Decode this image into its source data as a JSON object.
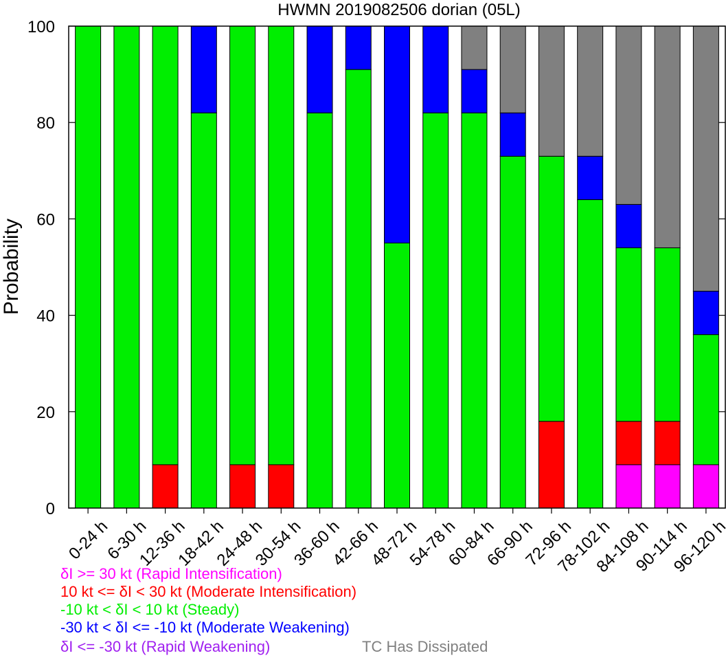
{
  "chart_data": {
    "type": "bar",
    "stacked": true,
    "title": "HWMN 2019082506 dorian (05L)",
    "xlabel": "",
    "ylabel": "Probability",
    "ylim": [
      0,
      100
    ],
    "yticks": [
      0,
      20,
      40,
      60,
      80,
      100
    ],
    "grid": false,
    "categories": [
      "0-24 h",
      "6-30 h",
      "12-36 h",
      "18-42 h",
      "24-48 h",
      "30-54 h",
      "36-60 h",
      "42-66 h",
      "48-72 h",
      "54-78 h",
      "60-84 h",
      "66-90 h",
      "72-96 h",
      "78-102 h",
      "84-108 h",
      "90-114 h",
      "96-120 h"
    ],
    "series": [
      {
        "name": "Rapid Weakening",
        "color": "#a020f0",
        "values": [
          0,
          0,
          0,
          0,
          0,
          0,
          0,
          0,
          0,
          0,
          0,
          0,
          0,
          0,
          0,
          0,
          0
        ]
      },
      {
        "name": "Rapid Intensification",
        "color": "#ff00ff",
        "values": [
          0,
          0,
          0,
          0,
          0,
          0,
          0,
          0,
          0,
          0,
          0,
          0,
          0,
          0,
          9,
          9,
          9
        ]
      },
      {
        "name": "Moderate Intensification",
        "color": "#ff0000",
        "values": [
          0,
          0,
          9,
          0,
          9,
          9,
          0,
          0,
          0,
          0,
          0,
          0,
          18,
          0,
          9,
          9,
          0
        ]
      },
      {
        "name": "Steady",
        "color": "#00ee00",
        "values": [
          100,
          100,
          91,
          82,
          91,
          91,
          82,
          91,
          55,
          82,
          82,
          73,
          55,
          64,
          36,
          36,
          27
        ]
      },
      {
        "name": "Moderate Weakening",
        "color": "#0000ff",
        "values": [
          0,
          0,
          0,
          18,
          0,
          0,
          18,
          9,
          45,
          18,
          9,
          9,
          0,
          9,
          9,
          0,
          9
        ]
      },
      {
        "name": "TC Has Dissipated",
        "color": "#808080",
        "values": [
          0,
          0,
          0,
          0,
          0,
          0,
          0,
          0,
          0,
          0,
          9,
          18,
          27,
          27,
          37,
          46,
          55
        ]
      }
    ],
    "legend": {
      "placement": "bottom-left",
      "entries": [
        {
          "prefix": "δI >= 30 kt (Rapid Intensification)",
          "color": "#ff00ff"
        },
        {
          "prefix": "10 kt <= δI < 30 kt (Moderate Intensification)",
          "color": "#ff0000"
        },
        {
          "prefix": "-10 kt < δI < 10 kt (Steady)",
          "color": "#00ee00"
        },
        {
          "prefix": "-30 kt < δI <= -10 kt (Moderate Weakening)",
          "color": "#0000ff"
        },
        {
          "prefix": "δI <= -30 kt (Rapid Weakening)",
          "color": "#a020f0"
        }
      ],
      "dissipated_label": "TC Has Dissipated",
      "dissipated_color": "#808080"
    }
  }
}
